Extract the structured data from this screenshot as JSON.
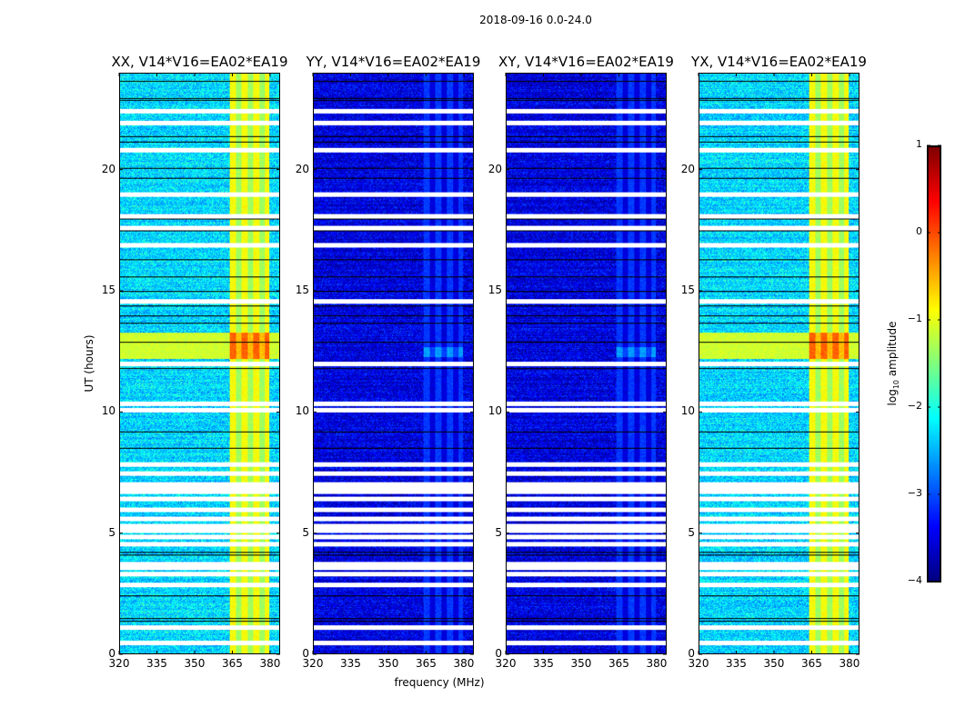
{
  "chart_data": {
    "type": "heatmap",
    "title": "2018-09-16 0.0-24.0",
    "xlabel": "frequency (MHz)",
    "ylabel": "UT (hours)",
    "xlim": [
      320,
      384
    ],
    "ylim": [
      0,
      24
    ],
    "xticks": [
      "320",
      "335",
      "350",
      "365",
      "380"
    ],
    "xtick_values": [
      320,
      335,
      350,
      365,
      380
    ],
    "yticks": [
      "0",
      "5",
      "10",
      "15",
      "20"
    ],
    "ytick_values": [
      0,
      5,
      10,
      15,
      20
    ],
    "colorbar": {
      "label": "log10 amplitude",
      "label_main": "log",
      "label_sub": "10",
      "label_rest": " amplitude",
      "range": [
        -4,
        1
      ],
      "ticks": [
        "1",
        "0",
        "−1",
        "−2",
        "−3",
        "−4"
      ],
      "tick_values": [
        1,
        0,
        -1,
        -2,
        -3,
        -4
      ],
      "colormap": "jet"
    },
    "flagged_hours": [
      0.45,
      1.09,
      2.85,
      3.3,
      3.56,
      3.71,
      4.54,
      4.84,
      5.1,
      5.29,
      5.59,
      5.97,
      6.42,
      6.7,
      6.85,
      7.0,
      7.47,
      7.84,
      10.09,
      10.36,
      12.01,
      14.6,
      16.92,
      17.64,
      18.12,
      19.02,
      20.86,
      21.99,
      22.48
    ],
    "dark_hours": [
      1.35,
      1.45,
      2.4,
      4.1,
      4.2,
      8.5,
      9.2,
      11.8,
      12.9,
      13.7,
      14.0,
      14.4,
      15.0,
      15.6,
      16.3,
      17.5,
      18.0,
      19.7,
      20.1,
      21.2,
      21.4,
      22.9,
      23.0,
      23.7
    ],
    "panels": [
      {
        "title": "XX, V14*V16=EA02*EA19",
        "base_level": -2.3,
        "band_range_mhz": [
          364,
          380
        ],
        "band_level": -1.2,
        "burst_hours": [
          12.2,
          13.3
        ],
        "burst_level": -0.4
      },
      {
        "title": "YY, V14*V16=EA02*EA19",
        "base_level": -3.5,
        "band_range_mhz": [
          364,
          380
        ],
        "band_level": -3.4,
        "burst_hours": [
          12.3,
          12.7
        ],
        "burst_level": -2.9
      },
      {
        "title": "XY, V14*V16=EA02*EA19",
        "base_level": -3.5,
        "band_range_mhz": [
          364,
          380
        ],
        "band_level": -3.4,
        "burst_hours": [
          12.3,
          12.7
        ],
        "burst_level": -2.9
      },
      {
        "title": "YX, V14*V16=EA02*EA19",
        "base_level": -2.3,
        "band_range_mhz": [
          364,
          380
        ],
        "band_level": -1.2,
        "burst_hours": [
          12.2,
          13.3
        ],
        "burst_level": -0.4
      }
    ]
  }
}
